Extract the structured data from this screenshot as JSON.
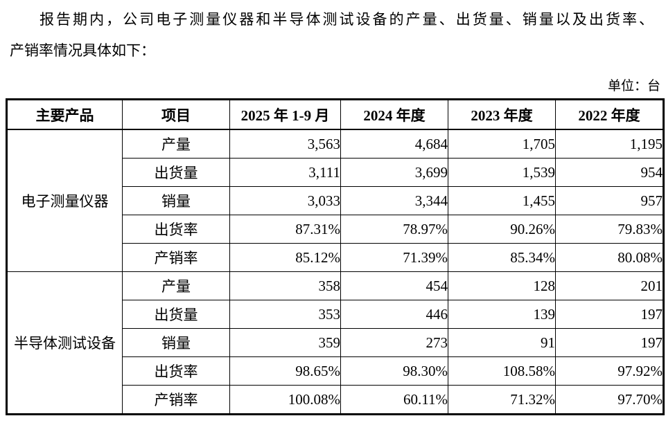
{
  "intro": {
    "lines": [
      "报告期内，公司电子测量仪器和半导体测试设备的产量、出货量、销量以及出货率、",
      "产销率情况具体如下："
    ],
    "unit_note": "单位：台"
  },
  "table": {
    "headers": [
      "主要产品",
      "项目",
      "2025 年 1-9 月",
      "2024 年度",
      "2023 年度",
      "2022 年度"
    ],
    "groups": [
      {
        "product": "电子测量仪器",
        "rows": [
          {
            "item": "产量",
            "values": [
              "3,563",
              "4,684",
              "1,705",
              "1,195"
            ]
          },
          {
            "item": "出货量",
            "values": [
              "3,111",
              "3,699",
              "1,539",
              "954"
            ]
          },
          {
            "item": "销量",
            "values": [
              "3,033",
              "3,344",
              "1,455",
              "957"
            ]
          },
          {
            "item": "出货率",
            "values": [
              "87.31%",
              "78.97%",
              "90.26%",
              "79.83%"
            ]
          },
          {
            "item": "产销率",
            "values": [
              "85.12%",
              "71.39%",
              "85.34%",
              "80.08%"
            ]
          }
        ]
      },
      {
        "product": "半导体测试设备",
        "rows": [
          {
            "item": "产量",
            "values": [
              "358",
              "454",
              "128",
              "201"
            ]
          },
          {
            "item": "出货量",
            "values": [
              "353",
              "446",
              "139",
              "197"
            ]
          },
          {
            "item": "销量",
            "values": [
              "359",
              "273",
              "91",
              "197"
            ]
          },
          {
            "item": "出货率",
            "values": [
              "98.65%",
              "98.30%",
              "108.58%",
              "97.92%"
            ]
          },
          {
            "item": "产销率",
            "values": [
              "100.08%",
              "60.11%",
              "71.32%",
              "97.70%"
            ]
          }
        ]
      }
    ]
  },
  "colors": {
    "text": "#000000",
    "border": "#000000",
    "background": "#ffffff"
  }
}
